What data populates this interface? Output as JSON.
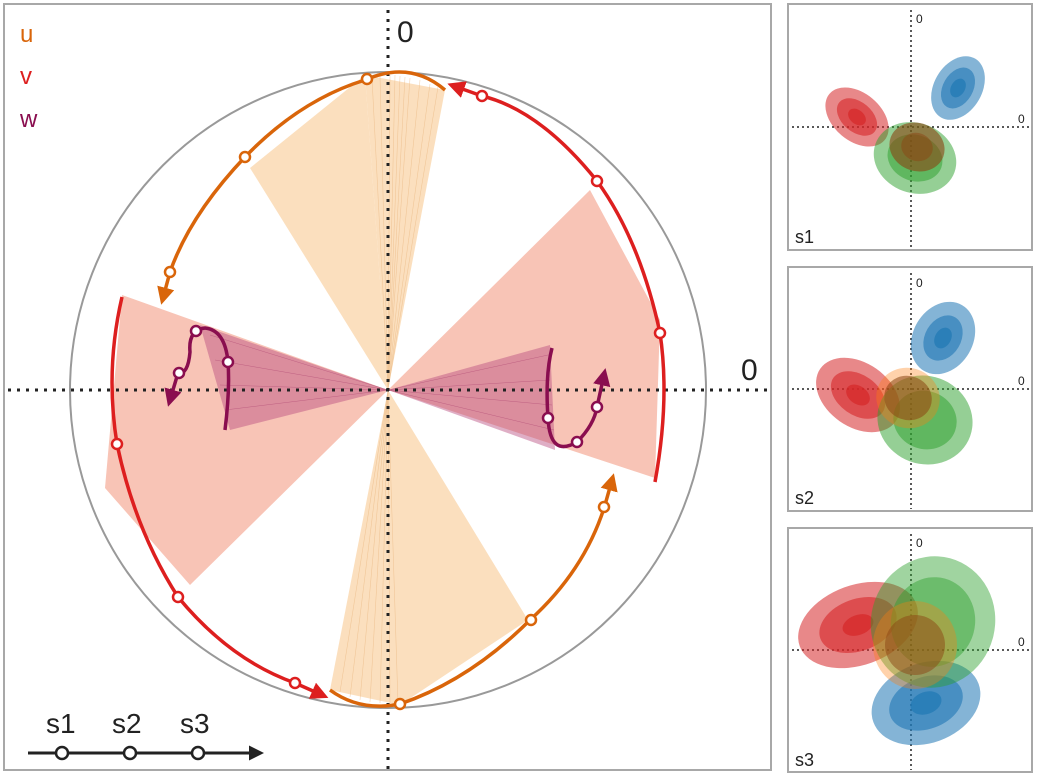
{
  "main": {
    "legend": [
      {
        "label": "u",
        "color": "#d9650a"
      },
      {
        "label": "v",
        "color": "#dd1f1f"
      },
      {
        "label": "w",
        "color": "#8a0e4f"
      }
    ],
    "axis_top_label": "0",
    "axis_right_label": "0",
    "timeline": {
      "labels": [
        "s1",
        "s2",
        "s3"
      ]
    }
  },
  "panels": [
    {
      "label": "s1",
      "axis_top_label": "0",
      "axis_right_label": "0"
    },
    {
      "label": "s2",
      "axis_top_label": "0",
      "axis_right_label": "0"
    },
    {
      "label": "s3",
      "axis_top_label": "0",
      "axis_right_label": "0"
    }
  ],
  "colors": {
    "u": "#d9650a",
    "v": "#dd1f1f",
    "w": "#8a0e4f",
    "u_fill": "#fad9b3",
    "v_fill": "#f8c4b6",
    "w_fill": "#b84b7f",
    "frame": "#a8a8a8",
    "red_blob": "#d62728",
    "blue_blob": "#1f77b4",
    "green_blob": "#2ca02c",
    "orange_blob": "#ff7f0e"
  }
}
